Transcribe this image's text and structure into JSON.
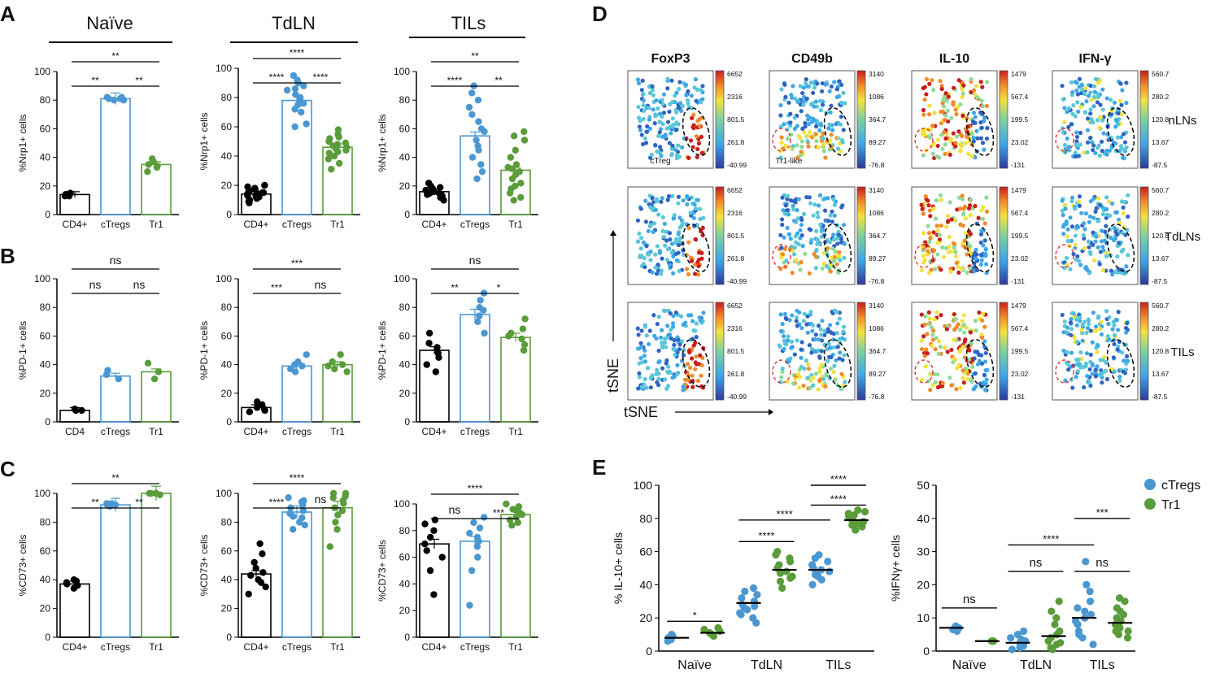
{
  "panel_letters": {
    "A": "A",
    "B": "B",
    "C": "C",
    "D": "D",
    "E": "E"
  },
  "colors": {
    "cd4": "#000000",
    "ctreg": "#4a97d2",
    "tr1": "#5a9c3a"
  },
  "groups": [
    "Naïve",
    "TdLN",
    "TILs"
  ],
  "chart_data": [
    {
      "type": "bar",
      "panel": "A",
      "column": 0,
      "title": "",
      "ylabel": "%Nrp1+ cells",
      "ylim": [
        0,
        100
      ],
      "yticks": [
        0,
        20,
        40,
        60,
        80,
        100
      ],
      "categories": [
        "CD4+",
        "cTregs",
        "Tr1"
      ],
      "values": [
        14,
        81,
        35
      ],
      "points": [
        [
          13,
          14,
          14,
          15,
          13,
          14
        ],
        [
          80,
          81,
          82,
          80,
          81,
          81,
          82
        ],
        [
          30,
          34,
          37,
          39,
          33,
          35
        ]
      ],
      "sig": [
        {
          "a": 0,
          "b": 1,
          "label": "**"
        },
        {
          "a": 1,
          "b": 2,
          "label": "**"
        },
        {
          "a": 0,
          "b": 2,
          "label": "**"
        }
      ]
    },
    {
      "type": "bar",
      "panel": "A",
      "column": 1,
      "title": "",
      "ylabel": "%Nrp1+ cells",
      "ylim": [
        0,
        100
      ],
      "yticks": [
        0,
        20,
        40,
        60,
        80,
        100
      ],
      "categories": [
        "CD4+",
        "cTregs",
        "Tr1"
      ],
      "values": [
        14,
        78,
        46
      ],
      "points": [
        [
          10,
          12,
          14,
          16,
          18,
          20,
          8,
          13,
          15,
          11,
          17,
          12,
          14,
          9,
          16,
          19,
          13,
          15
        ],
        [
          95,
          92,
          90,
          88,
          85,
          80,
          78,
          76,
          75,
          72,
          70,
          62,
          60,
          82,
          86
        ],
        [
          58,
          55,
          53,
          50,
          48,
          46,
          45,
          44,
          42,
          40,
          38,
          35,
          31,
          52,
          47,
          43,
          49
        ]
      ],
      "sig": [
        {
          "a": 0,
          "b": 1,
          "label": "****"
        },
        {
          "a": 1,
          "b": 2,
          "label": "****"
        },
        {
          "a": 0,
          "b": 2,
          "label": "****"
        }
      ]
    },
    {
      "type": "bar",
      "panel": "A",
      "column": 2,
      "title": "",
      "ylabel": "%Nrp1+ cells",
      "ylim": [
        0,
        100
      ],
      "yticks": [
        0,
        20,
        40,
        60,
        80,
        100
      ],
      "categories": [
        "CD4+",
        "cTregs",
        "Tr1"
      ],
      "values": [
        16,
        55,
        31
      ],
      "points": [
        [
          12,
          14,
          15,
          17,
          18,
          20,
          16,
          13,
          22,
          10,
          15,
          19,
          14
        ],
        [
          90,
          85,
          80,
          75,
          70,
          65,
          60,
          52,
          48,
          40,
          35,
          30,
          25,
          58,
          45
        ],
        [
          58,
          55,
          52,
          45,
          40,
          35,
          32,
          30,
          28,
          25,
          22,
          20,
          18,
          15,
          10,
          12,
          33
        ]
      ],
      "sig": [
        {
          "a": 0,
          "b": 1,
          "label": "****"
        },
        {
          "a": 1,
          "b": 2,
          "label": "**"
        },
        {
          "a": 0,
          "b": 2,
          "label": "**"
        }
      ]
    },
    {
      "type": "bar",
      "panel": "B",
      "column": 0,
      "title": "",
      "ylabel": "%PD-1+ cells",
      "ylim": [
        0,
        100
      ],
      "yticks": [
        0,
        20,
        40,
        60,
        80,
        100
      ],
      "categories": [
        "CD4",
        "cTregs",
        "Tr1"
      ],
      "values": [
        8,
        32,
        35
      ],
      "points": [
        [
          8,
          8,
          9
        ],
        [
          30,
          33,
          36
        ],
        [
          30,
          35,
          41
        ]
      ],
      "sig": [
        {
          "a": 0,
          "b": 1,
          "label": "ns"
        },
        {
          "a": 1,
          "b": 2,
          "label": "ns"
        },
        {
          "a": 0,
          "b": 2,
          "label": "ns"
        }
      ]
    },
    {
      "type": "bar",
      "panel": "B",
      "column": 1,
      "title": "",
      "ylabel": "%PD-1+ cells",
      "ylim": [
        0,
        100
      ],
      "yticks": [
        0,
        20,
        40,
        60,
        80,
        100
      ],
      "categories": [
        "CD4+",
        "cTregs",
        "Tr1"
      ],
      "values": [
        10,
        39,
        40
      ],
      "points": [
        [
          7,
          9,
          10,
          12,
          14,
          8
        ],
        [
          35,
          37,
          39,
          40,
          42,
          47
        ],
        [
          35,
          37,
          39,
          40,
          42,
          47
        ]
      ],
      "sig": [
        {
          "a": 0,
          "b": 1,
          "label": "***"
        },
        {
          "a": 1,
          "b": 2,
          "label": "ns"
        },
        {
          "a": 0,
          "b": 2,
          "label": "***"
        }
      ]
    },
    {
      "type": "bar",
      "panel": "B",
      "column": 2,
      "title": "",
      "ylabel": "%PD-1+ cells",
      "ylim": [
        0,
        100
      ],
      "yticks": [
        0,
        20,
        40,
        60,
        80,
        100
      ],
      "categories": [
        "CD4+",
        "cTregs",
        "Tr1"
      ],
      "values": [
        50,
        75,
        59
      ],
      "points": [
        [
          35,
          40,
          45,
          48,
          52,
          55,
          62
        ],
        [
          62,
          70,
          74,
          78,
          80,
          85,
          90
        ],
        [
          50,
          54,
          58,
          60,
          62,
          65,
          72
        ]
      ],
      "sig": [
        {
          "a": 0,
          "b": 1,
          "label": "**"
        },
        {
          "a": 1,
          "b": 2,
          "label": "*"
        },
        {
          "a": 0,
          "b": 2,
          "label": "ns"
        }
      ]
    },
    {
      "type": "bar",
      "panel": "C",
      "column": 0,
      "title": "",
      "ylabel": "%CD73+ cells",
      "ylim": [
        0,
        100
      ],
      "yticks": [
        0,
        20,
        40,
        60,
        80,
        100
      ],
      "categories": [
        "CD4+",
        "cTregs",
        "Tr1"
      ],
      "values": [
        37,
        92,
        100
      ],
      "points": [
        [
          34,
          36,
          37,
          38,
          39,
          40
        ],
        [
          91,
          92,
          92,
          93,
          93
        ],
        [
          99,
          100,
          100,
          100,
          100
        ]
      ],
      "sig": [
        {
          "a": 0,
          "b": 1,
          "label": "**"
        },
        {
          "a": 1,
          "b": 2,
          "label": "**"
        },
        {
          "a": 0,
          "b": 2,
          "label": "**"
        }
      ]
    },
    {
      "type": "bar",
      "panel": "C",
      "column": 1,
      "title": "",
      "ylabel": "%CD73+ cells",
      "ylim": [
        0,
        100
      ],
      "yticks": [
        0,
        20,
        40,
        60,
        80,
        100
      ],
      "categories": [
        "CD4+",
        "cTregs",
        "Tr1"
      ],
      "values": [
        44,
        87,
        90
      ],
      "points": [
        [
          30,
          35,
          38,
          40,
          43,
          45,
          48,
          52,
          58,
          65
        ],
        [
          75,
          78,
          80,
          84,
          86,
          88,
          90,
          92,
          95,
          97,
          94,
          83
        ],
        [
          63,
          75,
          80,
          85,
          88,
          90,
          93,
          95,
          98,
          100,
          100,
          97
        ]
      ],
      "sig": [
        {
          "a": 0,
          "b": 1,
          "label": "****"
        },
        {
          "a": 1,
          "b": 2,
          "label": "ns"
        },
        {
          "a": 0,
          "b": 2,
          "label": "****"
        }
      ]
    },
    {
      "type": "bar",
      "panel": "C",
      "column": 2,
      "title": "",
      "ylabel": "%CD73+ cells",
      "ylim": [
        0,
        100
      ],
      "yticks": [
        0,
        20,
        40,
        60,
        80,
        100
      ],
      "categories": [
        "CD4+",
        "cTregs",
        "Tr1"
      ],
      "values": [
        70,
        72,
        92
      ],
      "points": [
        [
          32,
          50,
          60,
          65,
          70,
          75,
          80,
          85,
          88
        ],
        [
          24,
          50,
          60,
          68,
          72,
          75,
          78,
          82,
          86,
          90
        ],
        [
          84,
          86,
          88,
          90,
          92,
          94,
          96,
          98,
          100,
          95
        ]
      ],
      "sig": [
        {
          "a": 0,
          "b": 1,
          "label": "ns"
        },
        {
          "a": 1,
          "b": 2,
          "label": "***"
        },
        {
          "a": 0,
          "b": 2,
          "label": "****"
        }
      ]
    },
    {
      "type": "scatter",
      "panel": "E",
      "column": 0,
      "ylabel": "% IL-10+ cells",
      "ylim": [
        0,
        100
      ],
      "yticks": [
        0,
        20,
        40,
        60,
        80,
        100
      ],
      "categories": [
        "Naïve",
        "TdLN",
        "TILs"
      ],
      "series": [
        {
          "name": "cTregs",
          "means": [
            8,
            29,
            49
          ],
          "points": [
            [
              6,
              7,
              8,
              9,
              10
            ],
            [
              17,
              20,
              22,
              25,
              27,
              28,
              30,
              32,
              34,
              36,
              38,
              23,
              26
            ],
            [
              40,
              43,
              45,
              47,
              49,
              50,
              52,
              54,
              56,
              58,
              48,
              46
            ]
          ]
        },
        {
          "name": "Tr1",
          "means": [
            11,
            49,
            79
          ],
          "points": [
            [
              9,
              10,
              11,
              12,
              13,
              14
            ],
            [
              38,
              42,
              45,
              48,
              50,
              52,
              54,
              56,
              58,
              60,
              47,
              44
            ],
            [
              73,
              75,
              77,
              78,
              79,
              80,
              81,
              82,
              83,
              85,
              76,
              84
            ]
          ]
        }
      ],
      "sig": [
        {
          "x1": 0,
          "x2": 1,
          "y": 18,
          "label": "*"
        },
        {
          "x1": 2,
          "x2": 3,
          "y": 66,
          "label": "****"
        },
        {
          "x1": 2,
          "x2": 4,
          "y": 79,
          "label": "****"
        },
        {
          "x1": 4,
          "x2": 5,
          "y": 88,
          "label": "****"
        },
        {
          "x1": 4,
          "x2": 5,
          "y": 100,
          "label": "****"
        }
      ]
    },
    {
      "type": "scatter",
      "panel": "E",
      "column": 1,
      "ylabel": "%IFNγ+ cells",
      "ylim": [
        0,
        50
      ],
      "yticks": [
        0,
        10,
        20,
        30,
        40,
        50
      ],
      "categories": [
        "Naïve",
        "TdLN",
        "TILs"
      ],
      "series": [
        {
          "name": "cTregs",
          "means": [
            7,
            2.5,
            10
          ],
          "points": [
            [
              6,
              6.5,
              7,
              7.5
            ],
            [
              0.5,
              1,
              1.5,
              2,
              2.5,
              3,
              3.5,
              4,
              5,
              6,
              1.2,
              2.2
            ],
            [
              2,
              4,
              6,
              8,
              9,
              10,
              11,
              12,
              13,
              15,
              18,
              20,
              27,
              5
            ]
          ]
        },
        {
          "name": "Tr1",
          "means": [
            3,
            4.5,
            8.5
          ],
          "points": [
            [
              3,
              3,
              3
            ],
            [
              0.5,
              1,
              2,
              3,
              4,
              5,
              6,
              8,
              10,
              12,
              15,
              2.5
            ],
            [
              4,
              5,
              6,
              7,
              8,
              9,
              10,
              11,
              12,
              13,
              15,
              16,
              6
            ]
          ]
        }
      ],
      "sig": [
        {
          "x1": 0,
          "x2": 1,
          "y": 13,
          "label": "ns"
        },
        {
          "x1": 2,
          "x2": 3,
          "y": 24,
          "label": "ns"
        },
        {
          "x1": 4,
          "x2": 5,
          "y": 24,
          "label": "ns"
        },
        {
          "x1": 2,
          "x2": 4,
          "y": 32,
          "label": "****"
        },
        {
          "x1": 4,
          "x2": 5,
          "y": 40,
          "label": "***"
        }
      ]
    }
  ],
  "panel_e": {
    "legend": [
      {
        "name": "cTregs"
      },
      {
        "name": "Tr1"
      }
    ]
  },
  "tsne": {
    "columns": [
      "FoxP3",
      "CD49b",
      "IL-10",
      "IFN-γ"
    ],
    "rows": [
      "nLNs",
      "TdLNs",
      "TILs"
    ],
    "scales": [
      [
        "6652",
        "2316",
        "801.5",
        "261.8",
        "-40.99"
      ],
      [
        "3140",
        "1086",
        "364.7",
        "89.27",
        "-76.8"
      ],
      [
        "1479",
        "567.4",
        "199.5",
        "23.02",
        "-131"
      ],
      [
        "560.7",
        "280.2",
        "120.8",
        "13.67",
        "-87.5"
      ]
    ],
    "labels": {
      "ctreg": "cTreg",
      "tr1like": "Tr1-like"
    },
    "axis_x": "tSNE",
    "axis_y": "tSNE"
  }
}
